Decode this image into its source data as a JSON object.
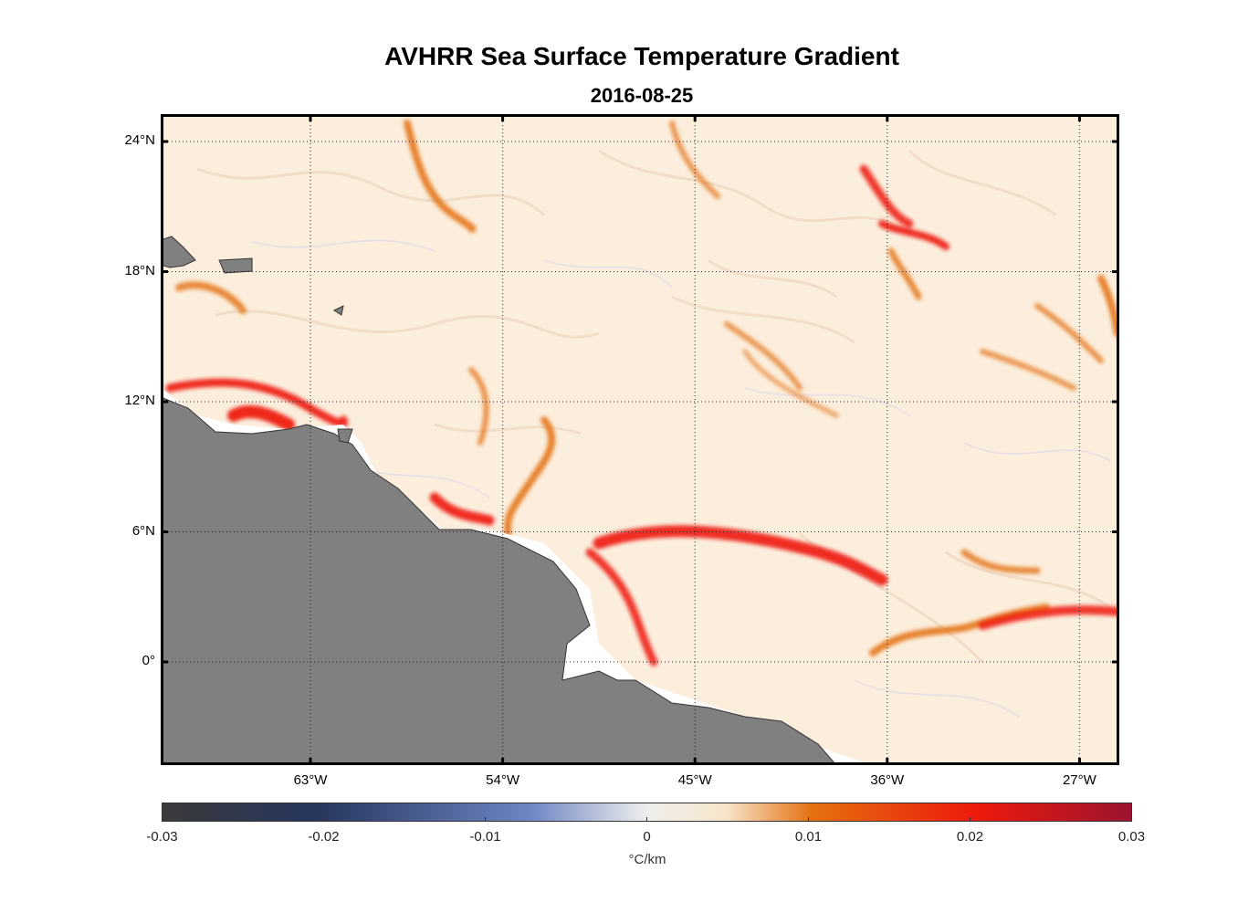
{
  "title": "AVHRR Sea Surface Temperature Gradient",
  "subtitle": "2016-08-25",
  "lat_ticks": [
    {
      "label": "24°N",
      "value": 24
    },
    {
      "label": "18°N",
      "value": 18
    },
    {
      "label": "12°N",
      "value": 12
    },
    {
      "label": "6°N",
      "value": 6
    },
    {
      "label": "0°",
      "value": 0
    }
  ],
  "lon_ticks": [
    {
      "label": "63°W",
      "value": -63
    },
    {
      "label": "54°W",
      "value": -54
    },
    {
      "label": "45°W",
      "value": -45
    },
    {
      "label": "36°W",
      "value": -36
    },
    {
      "label": "27°W",
      "value": -27
    }
  ],
  "colorbar": {
    "ticks": [
      "-0.03",
      "-0.02",
      "-0.01",
      "0",
      "0.01",
      "0.02",
      "0.03"
    ],
    "unit": "°C/km",
    "colors": [
      "#3a3a3a",
      "#26365e",
      "#6f86c4",
      "#eeeeec",
      "#f7e6cc",
      "#e4700f",
      "#ee1a0c",
      "#9c1330"
    ]
  },
  "colors": {
    "land": "#808080",
    "ocean_background": "#fbeedd",
    "front_orange": "#e4700f",
    "front_red": "#ee1a0c"
  }
}
